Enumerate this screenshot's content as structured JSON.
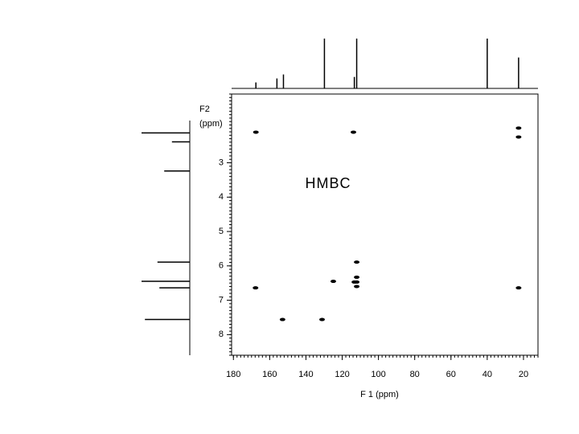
{
  "chart_data": {
    "type": "scatter",
    "annotation": "HMBC",
    "xlabel": "F 1 (ppm)",
    "ylabel": "F2",
    "ylabel_unit": "(ppm)",
    "color": "#000000",
    "xlim": [
      181,
      12
    ],
    "ylim": [
      1.0,
      8.6
    ],
    "xticks": [
      180,
      160,
      140,
      120,
      100,
      80,
      60,
      40,
      20
    ],
    "yticks": [
      3,
      4,
      5,
      6,
      7,
      8
    ],
    "x": [
      167.6,
      113.8,
      22.7,
      22.7,
      112,
      112,
      112,
      112,
      113.3,
      124.9,
      167.8,
      22.7,
      152.9,
      131.1
    ],
    "values": [
      2.11,
      2.11,
      1.99,
      2.25,
      5.89,
      6.33,
      6.47,
      6.6,
      6.47,
      6.45,
      6.64,
      6.64,
      7.56,
      7.56
    ],
    "f1_projection": {
      "x": [
        167.6,
        156,
        152.4,
        129.8,
        113.3,
        112,
        40,
        22.7
      ],
      "values": [
        12,
        20,
        28,
        100,
        23,
        100,
        100,
        62
      ]
    },
    "f2_projection": {
      "y": [
        2.13,
        2.39,
        3.24,
        5.89,
        6.45,
        6.64,
        7.56
      ],
      "values": [
        100,
        37,
        53,
        67,
        100,
        63,
        93
      ]
    }
  }
}
